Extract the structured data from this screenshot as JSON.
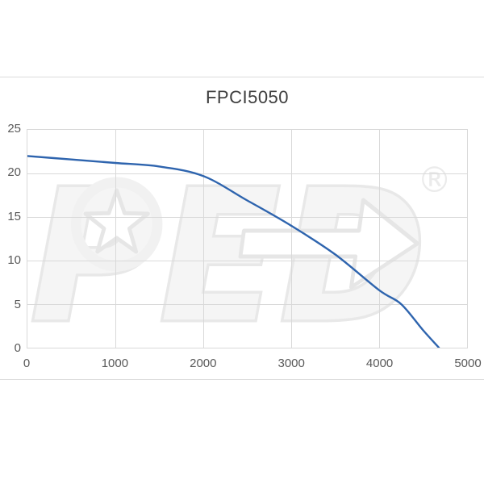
{
  "page": {
    "background": "#ffffff",
    "divider_color": "#dcdcdc"
  },
  "chart_data": {
    "type": "line",
    "title": "FPCI5050",
    "xlabel": "",
    "ylabel": "",
    "xlim": [
      0,
      5000
    ],
    "ylim": [
      0,
      25
    ],
    "x_ticks": [
      0,
      1000,
      2000,
      3000,
      4000,
      5000
    ],
    "y_ticks": [
      0,
      5,
      10,
      15,
      20,
      25
    ],
    "grid": true,
    "legend": "none",
    "gridline_color": "#d9d9d9",
    "tick_label_color": "#595959",
    "title_color": "#3d3d3d",
    "series": [
      {
        "name": "FPCI5050",
        "color": "#2e64ae",
        "points": [
          [
            0,
            22.0
          ],
          [
            500,
            21.6
          ],
          [
            1000,
            21.2
          ],
          [
            1500,
            20.8
          ],
          [
            2000,
            19.7
          ],
          [
            2500,
            16.9
          ],
          [
            3000,
            14.0
          ],
          [
            3500,
            10.7
          ],
          [
            4000,
            6.6
          ],
          [
            4250,
            5.0
          ],
          [
            4500,
            2.0
          ],
          [
            4680,
            0
          ]
        ]
      }
    ]
  },
  "watermark": {
    "text": "PED",
    "registered_mark": "®",
    "color": "#f0f0f0"
  }
}
